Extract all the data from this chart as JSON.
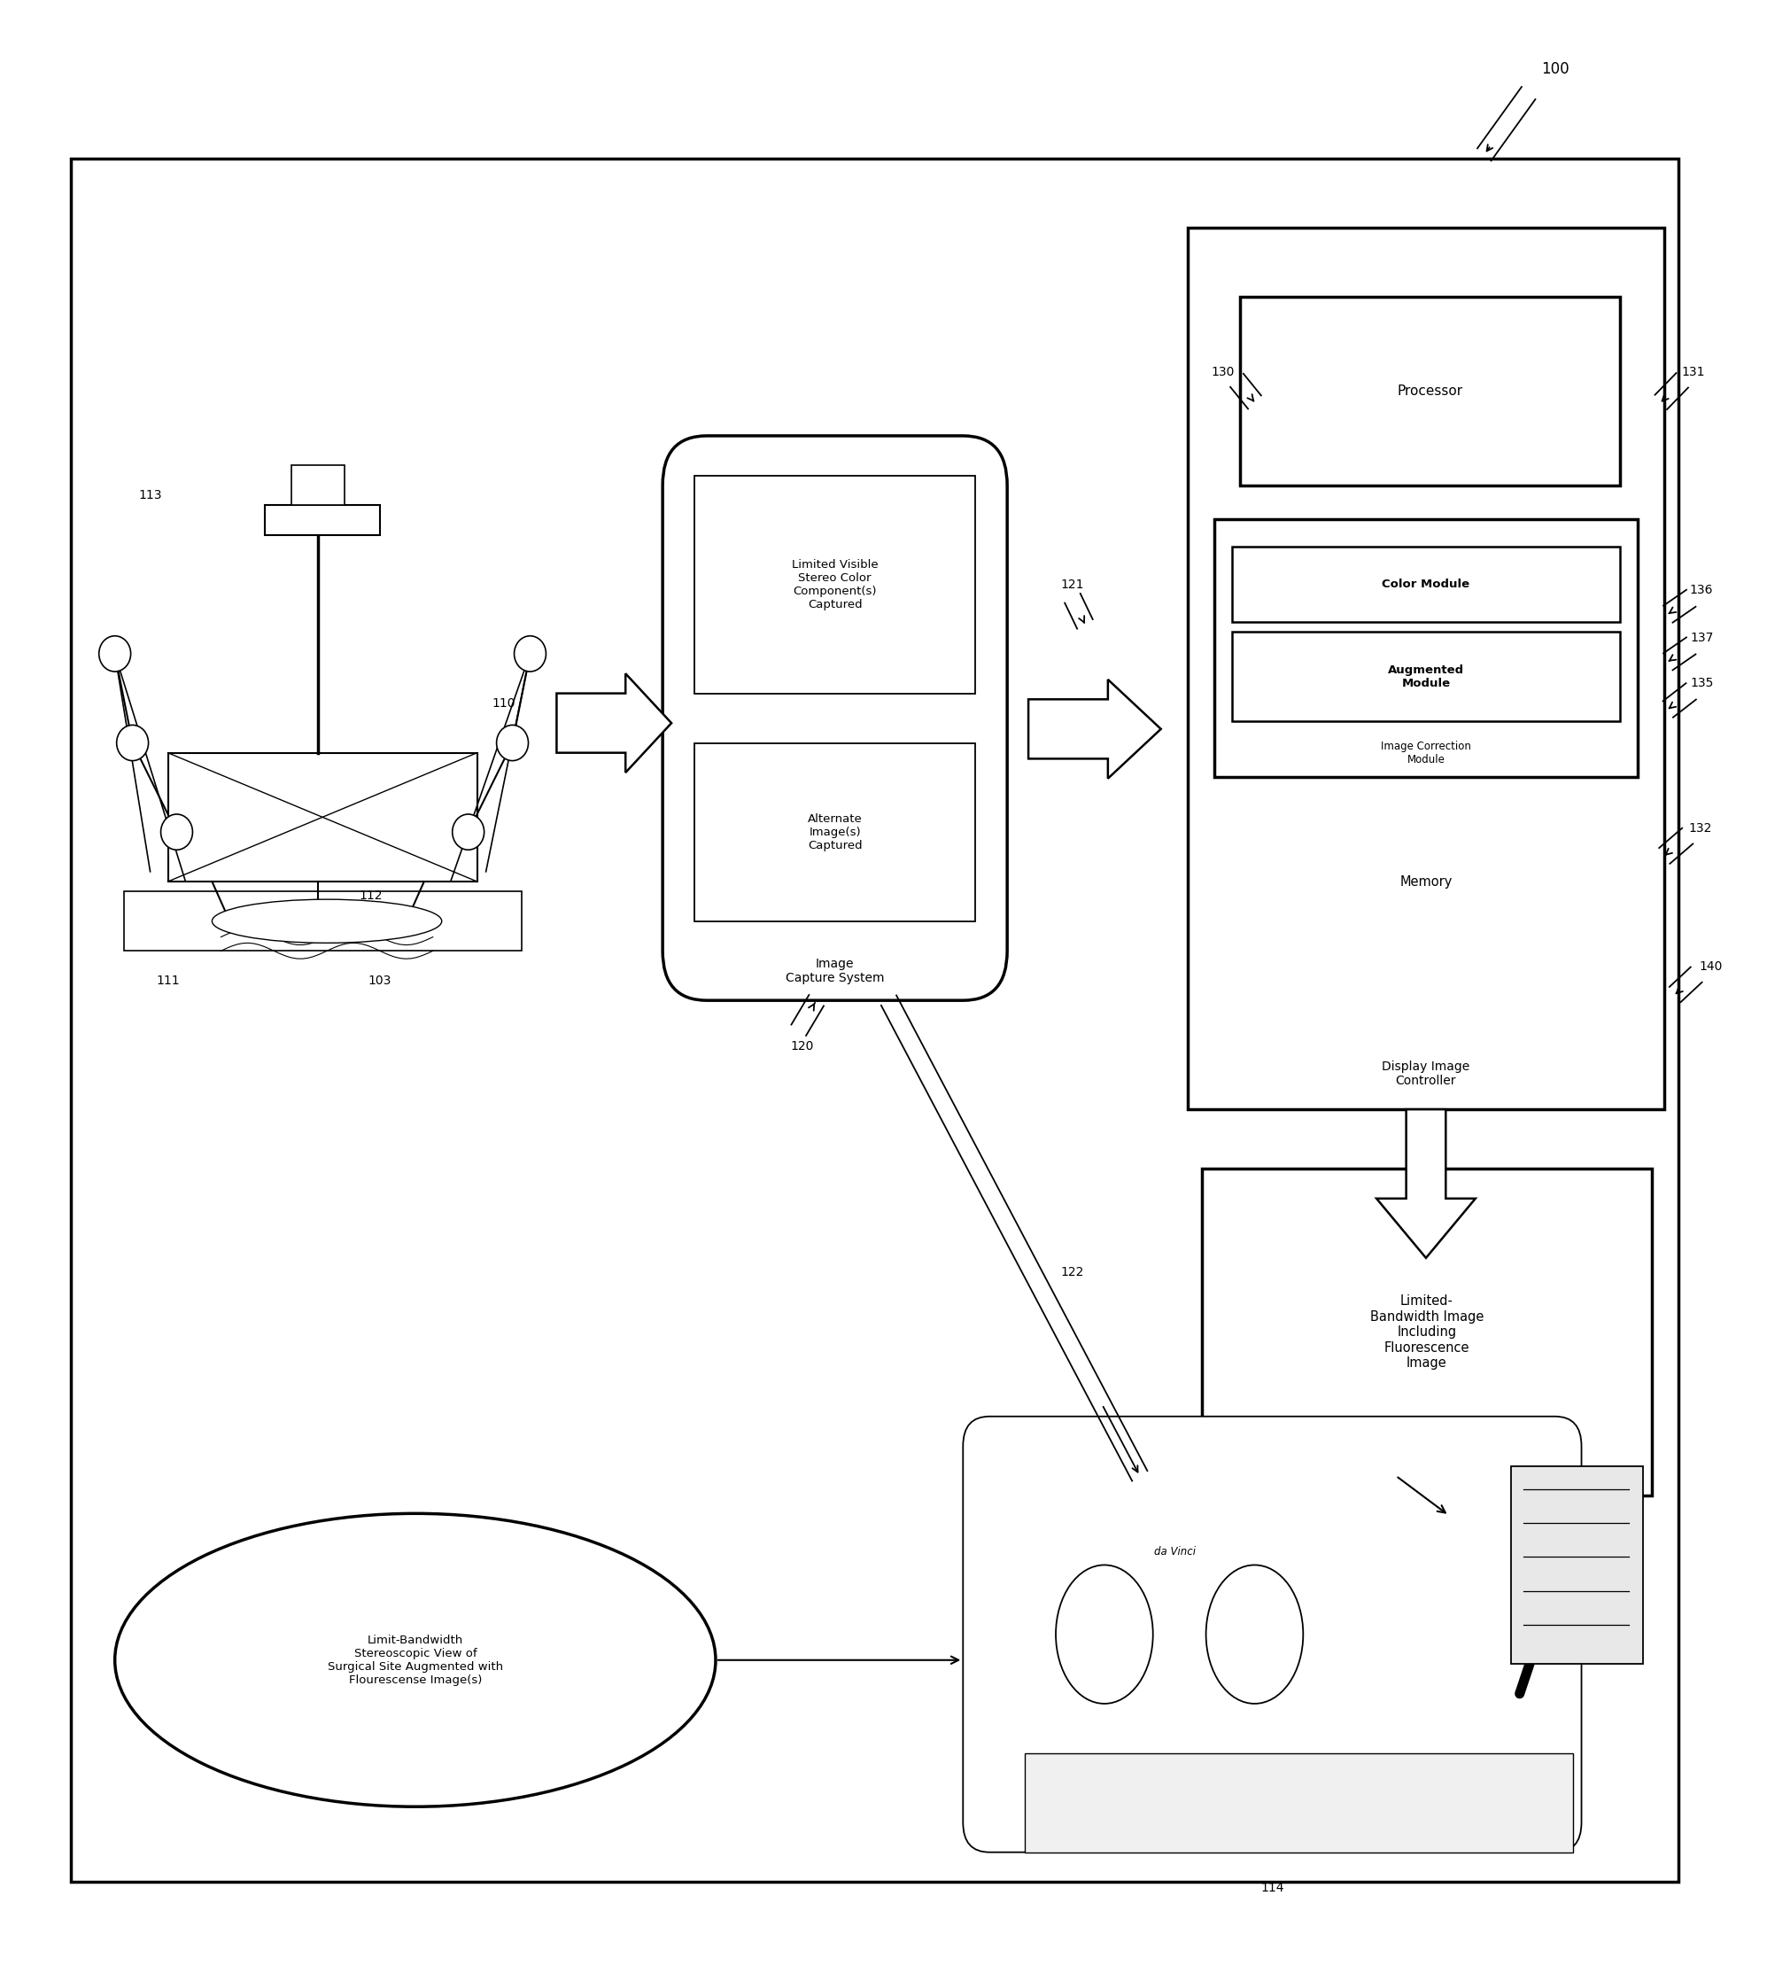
{
  "bg_color": "#ffffff",
  "border_color": "#000000",
  "text_color": "#000000",
  "fig_width": 19.95,
  "fig_height": 22.36,
  "label_100": "100",
  "label_110": "110",
  "label_111": "111",
  "label_112": "112",
  "label_113": "113",
  "label_103": "103",
  "label_114": "114",
  "label_120": "120",
  "label_121": "121",
  "label_122": "122",
  "label_130": "130",
  "label_131": "131",
  "label_132": "132",
  "label_135": "135",
  "label_136": "136",
  "label_137": "137",
  "label_140": "140",
  "ics_title": "Image\nCapture System",
  "ics_box1": "Limited Visible\nStereo Color\nComponent(s)\nCaptured",
  "ics_box2": "Alternate\nImage(s)\nCaptured",
  "proc_title": "Processor",
  "dic_title": "Display Image\nController",
  "memory_label": "Memory",
  "color_module": "Color Module",
  "aug_module": "Augmented\nModule",
  "img_corr": "Image Correction\nModule",
  "lbwi_title": "Limited-\nBandwidth Image\nIncluding\nFluorescence\nImage",
  "ellipse_text": "Limit-Bandwidth\nStereoscopic View of\nSurgical Site Augmented with\nFlourescense Image(s)"
}
